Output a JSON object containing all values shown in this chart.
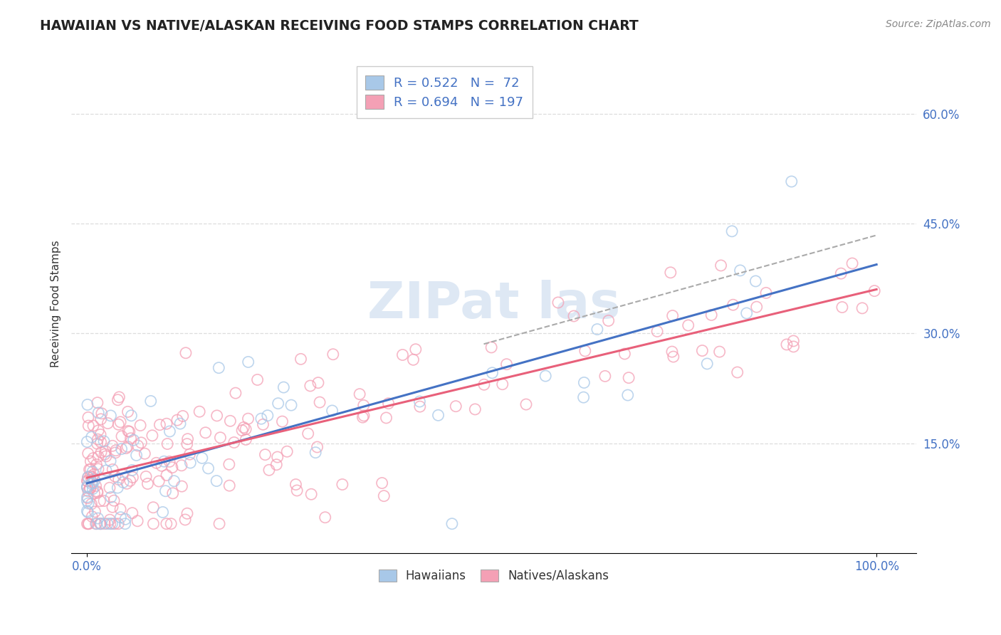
{
  "title": "HAWAIIAN VS NATIVE/ALASKAN RECEIVING FOOD STAMPS CORRELATION CHART",
  "source": "Source: ZipAtlas.com",
  "ylabel": "Receiving Food Stamps",
  "xlim": [
    -0.02,
    1.05
  ],
  "ylim": [
    0.0,
    0.68
  ],
  "x_ticks": [
    0.0,
    1.0
  ],
  "x_tick_labels": [
    "0.0%",
    "100.0%"
  ],
  "y_ticks": [
    0.15,
    0.3,
    0.45,
    0.6
  ],
  "y_tick_labels": [
    "15.0%",
    "30.0%",
    "45.0%",
    "60.0%"
  ],
  "hawaiians_R": 0.522,
  "hawaiians_N": 72,
  "natives_R": 0.694,
  "natives_N": 197,
  "legend_labels": [
    "Hawaiians",
    "Natives/Alaskans"
  ],
  "color_hawaiian": "#a8c8e8",
  "color_native": "#f4a0b5",
  "color_line_hawaiian": "#4472c4",
  "color_line_native": "#e8607a",
  "color_dashed": "#aaaaaa",
  "color_text_legend": "#4472c4",
  "color_tick_labels": "#4472c4",
  "background_color": "#ffffff",
  "watermark_text": "ZIPat las",
  "watermark_color": "#d0dff0",
  "grid_color": "#dddddd"
}
